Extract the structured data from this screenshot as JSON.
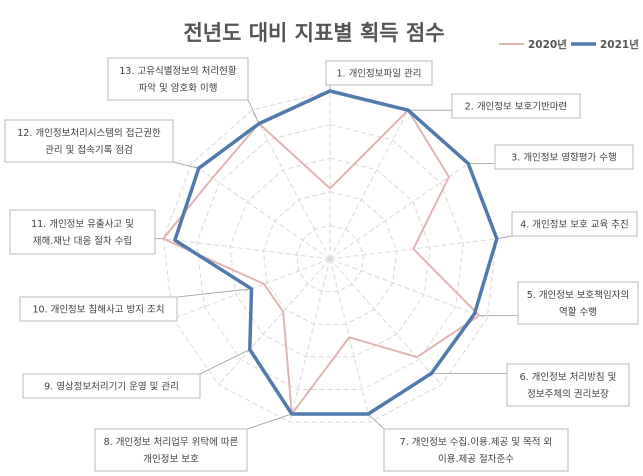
{
  "chart_data": {
    "type": "radar",
    "title": "전년도 대비 지표별 획득 점수",
    "legend_position": "top-right",
    "grid": true,
    "r_range": [
      0,
      1
    ],
    "categories": [
      [
        "1. 개인정보파일 관리"
      ],
      [
        "2. 개인정보 보호기반마련"
      ],
      [
        "3. 개인정보 영향평가 수행"
      ],
      [
        "4. 개인정보 보호 교육 추진"
      ],
      [
        "5. 개인정보 보호책임자의",
        "역할 수행"
      ],
      [
        "6. 개인정보 처리방침 및",
        "정보주체의 권리보장"
      ],
      [
        "7. 개인정보 수집.이용.제공 및 목적 외",
        "이용.제공 절차준수"
      ],
      [
        "8. 개인정보 처리업무 위탁에 따른",
        "개인정보 보호"
      ],
      [
        "9. 영상정보처리기기 운영 및 관리"
      ],
      [
        "10. 개인정보 침해사고 방지 조치"
      ],
      [
        "11. 개인정보 유출사고 및",
        "재해.재난 대응 절차 수립"
      ],
      [
        "12. 개인정보처리시스템의 접근권한",
        "관리 및 접속기록 점검"
      ],
      [
        "13. 고유식별정보의 처리현황",
        "파악 및 암호화 이행"
      ]
    ],
    "series": [
      {
        "name": "2020년",
        "color": "#e0b4b1",
        "values": [
          0.42,
          1.0,
          0.86,
          0.5,
          0.95,
          0.78,
          0.48,
          0.95,
          0.42,
          0.42,
          1.0,
          0.85,
          0.91
        ]
      },
      {
        "name": "2021년",
        "color": "#4f7aab",
        "values": [
          1.0,
          1.0,
          1.0,
          1.0,
          0.92,
          0.91,
          0.95,
          0.95,
          0.72,
          0.5,
          0.93,
          0.95,
          0.91
        ]
      }
    ]
  }
}
